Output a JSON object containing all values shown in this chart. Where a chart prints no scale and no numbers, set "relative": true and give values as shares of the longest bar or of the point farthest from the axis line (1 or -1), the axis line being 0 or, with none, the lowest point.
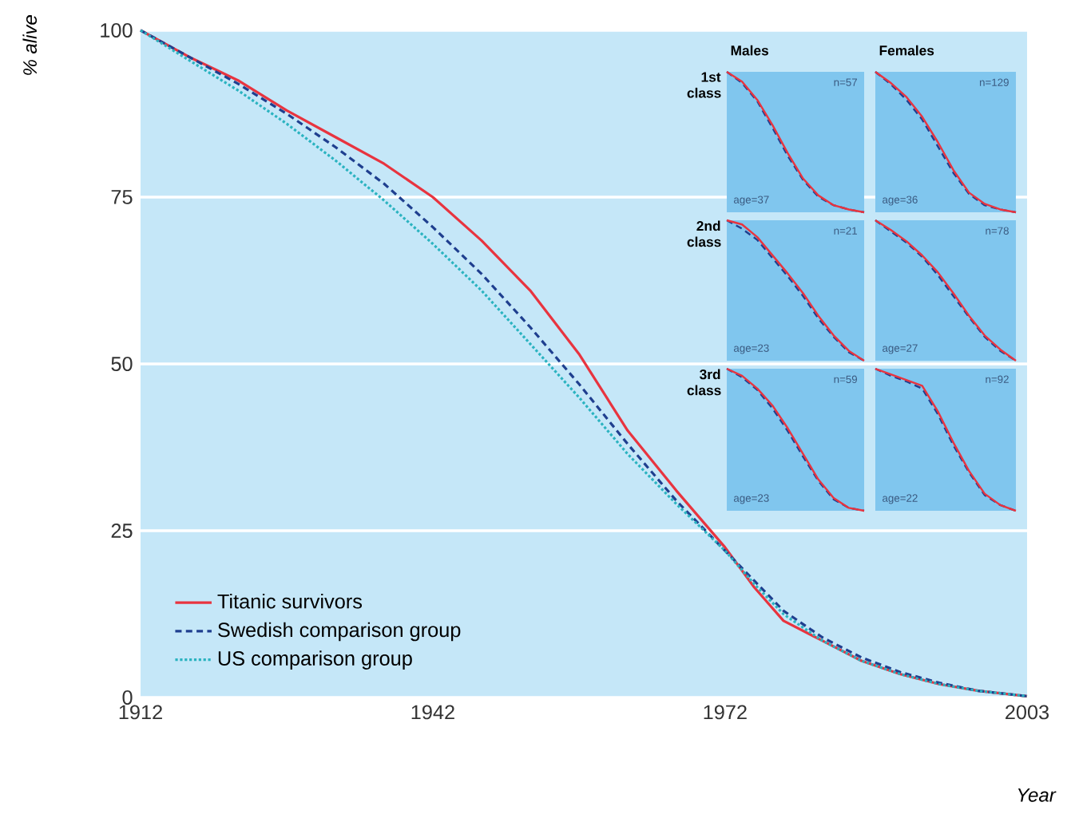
{
  "chart_data": [
    {
      "type": "line",
      "xlabel": "Year",
      "ylabel": "% alive",
      "xlim": [
        1912,
        2003
      ],
      "xticks": [
        1912,
        1942,
        1972,
        2003
      ],
      "ylim": [
        0,
        100
      ],
      "yticks": [
        0,
        25,
        50,
        75,
        100
      ],
      "grid": "y",
      "legend": "bottom left",
      "series": [
        {
          "name": "Titanic survivors",
          "color": "#e8343f",
          "line_style": "solid",
          "x": [
            1912,
            1917,
            1922,
            1927,
            1932,
            1937,
            1942,
            1947,
            1952,
            1957,
            1962,
            1967,
            1972,
            1975,
            1978,
            1982,
            1986,
            1990,
            1994,
            1998,
            2003
          ],
          "values": [
            100,
            96,
            92.5,
            88,
            84,
            80,
            75,
            68.5,
            61,
            51.5,
            40,
            31,
            22.5,
            16.5,
            11.5,
            8.5,
            5.5,
            3.5,
            2,
            1,
            0.2
          ]
        },
        {
          "name": "Swedish comparison group",
          "color": "#1f3f8f",
          "line_style": "dashed",
          "x": [
            1912,
            1917,
            1922,
            1927,
            1932,
            1937,
            1942,
            1947,
            1952,
            1957,
            1962,
            1967,
            1972,
            1975,
            1978,
            1982,
            1986,
            1990,
            1994,
            1998,
            2003
          ],
          "values": [
            100,
            96,
            92,
            87.5,
            82.5,
            77,
            70.5,
            63.5,
            55.5,
            47,
            38,
            29.5,
            22,
            17.5,
            13,
            9,
            6,
            3.8,
            2.2,
            1,
            0.2
          ]
        },
        {
          "name": "US comparison group",
          "color": "#2bb3c0",
          "line_style": "dotted",
          "x": [
            1912,
            1917,
            1922,
            1927,
            1932,
            1937,
            1942,
            1947,
            1952,
            1957,
            1962,
            1967,
            1972,
            1975,
            1978,
            1982,
            1986,
            1990,
            1994,
            1998,
            2003
          ],
          "values": [
            100,
            95.5,
            91,
            86,
            80.5,
            74.5,
            68,
            61,
            53,
            45,
            36.5,
            29,
            22,
            17,
            12.5,
            8.5,
            5.5,
            3.5,
            2,
            1,
            0.2
          ]
        }
      ]
    },
    {
      "type": "line",
      "relative": true,
      "title": "Males",
      "ylabel": "1st class",
      "categories": [
        null,
        null,
        null,
        null,
        null,
        null,
        null,
        null,
        null,
        null
      ],
      "annotations": [
        "n=57",
        "age=37"
      ],
      "series": [
        {
          "color": "#e8343f",
          "line_style": "solid",
          "values": [
            1,
            0.93,
            0.8,
            0.62,
            0.42,
            0.24,
            0.12,
            0.05,
            0.02,
            0
          ]
        },
        {
          "color": "#1f3f8f",
          "line_style": "dashed",
          "values": [
            1,
            0.92,
            0.79,
            0.6,
            0.4,
            0.23,
            0.11,
            0.05,
            0.02,
            0
          ]
        }
      ]
    },
    {
      "type": "line",
      "relative": true,
      "title": "Females",
      "categories": [
        null,
        null,
        null,
        null,
        null,
        null,
        null,
        null,
        null,
        null
      ],
      "annotations": [
        "n=129",
        "age=36"
      ],
      "series": [
        {
          "color": "#e8343f",
          "line_style": "solid",
          "values": [
            1,
            0.92,
            0.82,
            0.68,
            0.5,
            0.3,
            0.14,
            0.06,
            0.02,
            0
          ]
        },
        {
          "color": "#1f3f8f",
          "line_style": "dashed",
          "values": [
            1,
            0.91,
            0.8,
            0.66,
            0.47,
            0.28,
            0.13,
            0.05,
            0.02,
            0
          ]
        }
      ]
    },
    {
      "type": "line",
      "relative": true,
      "ylabel": "2nd class",
      "categories": [
        null,
        null,
        null,
        null,
        null,
        null,
        null,
        null,
        null,
        null
      ],
      "annotations": [
        "n=21",
        "age=23"
      ],
      "series": [
        {
          "color": "#e8343f",
          "line_style": "solid",
          "values": [
            1,
            0.97,
            0.88,
            0.75,
            0.62,
            0.48,
            0.32,
            0.18,
            0.07,
            0
          ]
        },
        {
          "color": "#1f3f8f",
          "line_style": "dashed",
          "values": [
            1,
            0.94,
            0.86,
            0.73,
            0.6,
            0.46,
            0.3,
            0.17,
            0.06,
            0
          ]
        }
      ]
    },
    {
      "type": "line",
      "relative": true,
      "categories": [
        null,
        null,
        null,
        null,
        null,
        null,
        null,
        null,
        null,
        null
      ],
      "annotations": [
        "n=78",
        "age=27"
      ],
      "series": [
        {
          "color": "#e8343f",
          "line_style": "solid",
          "values": [
            1,
            0.93,
            0.85,
            0.75,
            0.63,
            0.48,
            0.32,
            0.18,
            0.08,
            0
          ]
        },
        {
          "color": "#1f3f8f",
          "line_style": "dashed",
          "values": [
            1,
            0.92,
            0.84,
            0.74,
            0.61,
            0.46,
            0.31,
            0.17,
            0.07,
            0
          ]
        }
      ]
    },
    {
      "type": "line",
      "relative": true,
      "ylabel": "3rd class",
      "categories": [
        null,
        null,
        null,
        null,
        null,
        null,
        null,
        null,
        null,
        null
      ],
      "annotations": [
        "n=59",
        "age=23"
      ],
      "series": [
        {
          "color": "#e8343f",
          "line_style": "solid",
          "values": [
            1,
            0.95,
            0.86,
            0.74,
            0.58,
            0.4,
            0.22,
            0.09,
            0.02,
            0
          ]
        },
        {
          "color": "#1f3f8f",
          "line_style": "dashed",
          "values": [
            1,
            0.94,
            0.85,
            0.72,
            0.56,
            0.38,
            0.21,
            0.08,
            0.02,
            0
          ]
        }
      ]
    },
    {
      "type": "line",
      "relative": true,
      "categories": [
        null,
        null,
        null,
        null,
        null,
        null,
        null,
        null,
        null,
        null
      ],
      "annotations": [
        "n=92",
        "age=22"
      ],
      "series": [
        {
          "color": "#e8343f",
          "line_style": "solid",
          "values": [
            1,
            0.96,
            0.92,
            0.88,
            0.7,
            0.48,
            0.28,
            0.12,
            0.04,
            0
          ]
        },
        {
          "color": "#1f3f8f",
          "line_style": "dashed",
          "values": [
            1,
            0.95,
            0.91,
            0.86,
            0.68,
            0.46,
            0.27,
            0.11,
            0.04,
            0
          ]
        }
      ]
    }
  ]
}
